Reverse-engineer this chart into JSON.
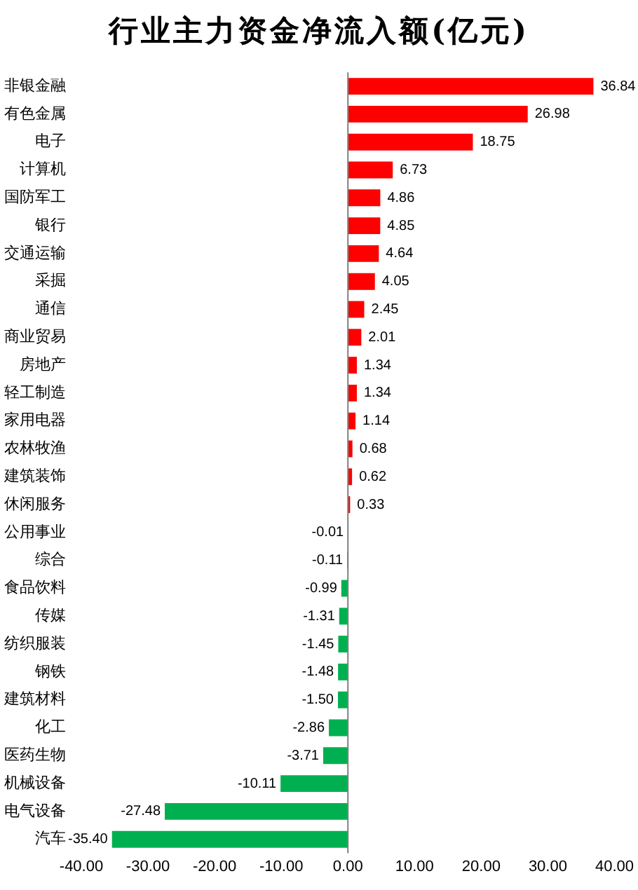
{
  "chart_data": {
    "type": "bar",
    "orientation": "horizontal",
    "title": "行业主力资金净流入额(亿元)",
    "categories": [
      "非银金融",
      "有色金属",
      "电子",
      "计算机",
      "国防军工",
      "银行",
      "交通运输",
      "采掘",
      "通信",
      "商业贸易",
      "房地产",
      "轻工制造",
      "家用电器",
      "农林牧渔",
      "建筑装饰",
      "休闲服务",
      "公用事业",
      "综合",
      "食品饮料",
      "传媒",
      "纺织服装",
      "钢铁",
      "建筑材料",
      "化工",
      "医药生物",
      "机械设备",
      "电气设备",
      "汽车"
    ],
    "values": [
      36.84,
      26.98,
      18.75,
      6.73,
      4.86,
      4.85,
      4.64,
      4.05,
      2.45,
      2.01,
      1.34,
      1.34,
      1.14,
      0.68,
      0.62,
      0.33,
      -0.01,
      -0.11,
      -0.99,
      -1.31,
      -1.45,
      -1.48,
      -1.5,
      -2.86,
      -3.71,
      -10.11,
      -27.48,
      -35.4
    ],
    "value_labels": [
      "36.84",
      "26.98",
      "18.75",
      "6.73",
      "4.86",
      "4.85",
      "4.64",
      "4.05",
      "2.45",
      "2.01",
      "1.34",
      "1.34",
      "1.14",
      "0.68",
      "0.62",
      "0.33",
      "-0.01",
      "-0.11",
      "-0.99",
      "-1.31",
      "-1.45",
      "-1.48",
      "-1.50",
      "-2.86",
      "-3.71",
      "-10.11",
      "-27.48",
      "-35.40"
    ],
    "colors": [
      "#ff0000",
      "#ff0000",
      "#ff0000",
      "#ff0000",
      "#ff0000",
      "#ff0000",
      "#ff0000",
      "#ff0000",
      "#ff0000",
      "#ff0000",
      "#ff0000",
      "#ff0000",
      "#ff0000",
      "#ff0000",
      "#ff0000",
      "#ff0000",
      "#00b050",
      "#00b050",
      "#00b050",
      "#00b050",
      "#00b050",
      "#00b050",
      "#00b050",
      "#00b050",
      "#00b050",
      "#00b050",
      "#00b050",
      "#00b050"
    ],
    "xlim": [
      -40,
      40
    ],
    "xticks": [
      {
        "value": -40,
        "label": "-40.00"
      },
      {
        "value": -30,
        "label": "-30.00"
      },
      {
        "value": -20,
        "label": "-20.00"
      },
      {
        "value": -10,
        "label": "-10.00"
      },
      {
        "value": 0,
        "label": "0.00"
      },
      {
        "value": 10,
        "label": "10.00"
      },
      {
        "value": 20,
        "label": "20.00"
      },
      {
        "value": 30,
        "label": "30.00"
      },
      {
        "value": 40,
        "label": "40.00"
      }
    ]
  }
}
